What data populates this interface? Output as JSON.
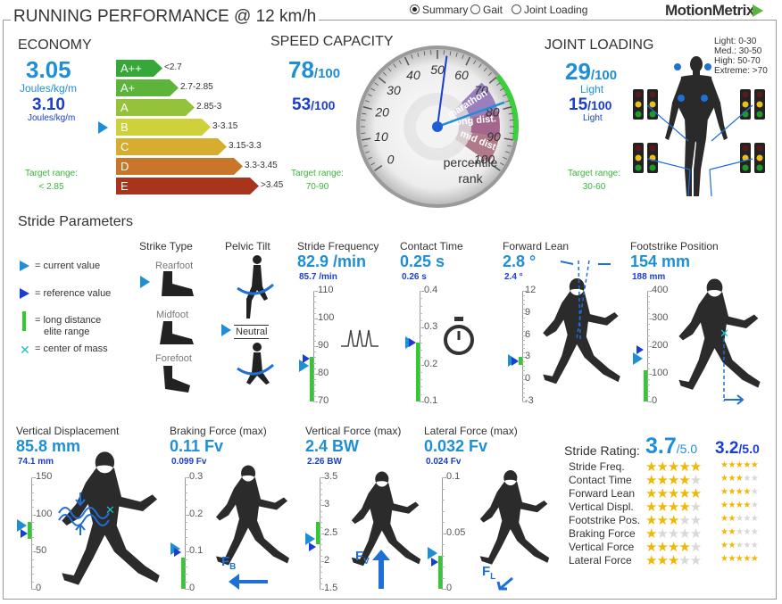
{
  "title": "RUNNING PERFORMANCE @ 12 km/h",
  "view_options": [
    {
      "label": "Summary",
      "selected": true
    },
    {
      "label": "Gait",
      "selected": false
    },
    {
      "label": "Joint Loading",
      "selected": false
    }
  ],
  "logo": "MotionMetrix",
  "economy": {
    "header": "ECONOMY",
    "current": "3.05",
    "current_unit": "Joules/kg/m",
    "reference": "3.10",
    "reference_unit": "Joules/kg/m",
    "target_label": "Target range:",
    "target_value": "< 2.85",
    "grades": [
      {
        "grade": "A++",
        "range": "<2.7",
        "color": "#36a83a"
      },
      {
        "grade": "A+",
        "range": "2.7-2.85",
        "color": "#5db43a"
      },
      {
        "grade": "A",
        "range": "2.85-3",
        "color": "#94c23a"
      },
      {
        "grade": "B",
        "range": "3-3.15",
        "color": "#cfd13a"
      },
      {
        "grade": "C",
        "range": "3.15-3.3",
        "color": "#d6ad2f"
      },
      {
        "grade": "D",
        "range": "3.3-3.45",
        "color": "#c9762a"
      },
      {
        "grade": "E",
        "range": ">3.45",
        "color": "#a8341c"
      }
    ],
    "current_grade_index": 3
  },
  "speed": {
    "header": "SPEED CAPACITY",
    "current": "78",
    "current_suffix": "/100",
    "reference": "53",
    "reference_suffix": "/100",
    "target_label": "Target range:",
    "target_value": "70-90",
    "gauge_label_1": "percentile",
    "gauge_label_2": "rank",
    "gauge_ticks": [
      "0",
      "10",
      "20",
      "30",
      "40",
      "50",
      "60",
      "70",
      "80",
      "90",
      "100"
    ],
    "bands": [
      "marathon",
      "long dist.",
      "mid dist"
    ],
    "current_value": 78,
    "reference_value": 53
  },
  "joint": {
    "header": "JOINT LOADING",
    "current": "29",
    "current_suffix": "/100",
    "current_label": "Light",
    "reference": "15",
    "reference_suffix": "/100",
    "reference_label": "Light",
    "target_label": "Target range:",
    "target_value": "30-60",
    "legend": [
      "Light: 0-30",
      "Med.: 30-50",
      "High: 50-70",
      "Extreme: >70"
    ]
  },
  "stride": {
    "header": "Stride Parameters",
    "legend": [
      {
        "icon": "current-value-icon",
        "text": "= current value"
      },
      {
        "icon": "reference-value-icon",
        "text": "= reference value"
      },
      {
        "icon": "elite-range-icon",
        "text": "= long distance"
      },
      {
        "icon": "none",
        "text": "elite range"
      },
      {
        "icon": "center-of-mass-icon",
        "text": "= center of mass"
      }
    ],
    "strike_type": {
      "title": "Strike Type",
      "options": [
        "Rearfoot",
        "Midfoot",
        "Forefoot"
      ]
    },
    "pelvic_tilt": {
      "title": "Pelvic Tilt",
      "value": "Neutral"
    },
    "gauges": [
      {
        "key": "freq",
        "title": "Stride Frequency",
        "value": "82.9 /min",
        "reference": "85.7 /min",
        "ticks": [
          "110",
          "100",
          "90",
          "80",
          "70"
        ],
        "current_frac": 0.32,
        "reference_frac": 0.39,
        "elite_low": 0.0,
        "elite_high": 0.4
      },
      {
        "key": "contact",
        "title": "Contact Time",
        "value": "0.25 s",
        "reference": "0.26 s",
        "ticks": [
          "0.4",
          "0.3",
          "0.2",
          "0.1"
        ],
        "current_frac": 0.53,
        "reference_frac": 0.53,
        "elite_low": 0.0,
        "elite_high": 0.53
      },
      {
        "key": "lean",
        "title": "Forward Lean",
        "value": "2.8 °",
        "reference": "2.4 °",
        "ticks": [
          "12",
          "9",
          "6",
          "3",
          "0",
          "-3"
        ],
        "current_frac": 0.37,
        "reference_frac": 0.36,
        "elite_low": 0.33,
        "elite_high": 0.4
      },
      {
        "key": "footstrike",
        "title": "Footstrike Position",
        "value": "154 mm",
        "reference": "188 mm",
        "ticks": [
          "400",
          "300",
          "200",
          "100",
          "0"
        ],
        "current_frac": 0.39,
        "reference_frac": 0.47,
        "elite_low": 0.0,
        "elite_high": 0.28
      },
      {
        "key": "vdisp",
        "title": "Vertical Displacement",
        "value": "85.8 mm",
        "reference": "74.1 mm",
        "ticks": [
          "150",
          "100",
          "50",
          "0"
        ],
        "current_frac": 0.57,
        "reference_frac": 0.5,
        "elite_low": 0.45,
        "elite_high": 0.6
      },
      {
        "key": "brake",
        "title": "Braking Force (max)",
        "value": "0.11 Fv",
        "reference": "0.099 Fv",
        "ticks": [
          "0.3",
          "0.2",
          "0.1",
          "0"
        ],
        "current_frac": 0.36,
        "reference_frac": 0.33,
        "elite_low": 0.0,
        "elite_high": 0.28
      },
      {
        "key": "vforce",
        "title": "Vertical Force (max)",
        "value": "2.4 BW",
        "reference": "2.26 BW",
        "ticks": [
          "3.5",
          "3",
          "2.5",
          "2",
          "1.5"
        ],
        "current_frac": 0.45,
        "reference_frac": 0.38,
        "elite_low": 0.4,
        "elite_high": 0.6
      },
      {
        "key": "lforce",
        "title": "Lateral Force (max)",
        "value": "0.032 Fv",
        "reference": "0.024 Fv",
        "ticks": [
          "0.1",
          "0.05",
          "0"
        ],
        "current_frac": 0.32,
        "reference_frac": 0.24,
        "elite_low": 0.0,
        "elite_high": 0.3
      }
    ],
    "force_labels": {
      "brake": "F",
      "brake_sub": "B",
      "vforce": "F",
      "vforce_sub": "V",
      "lforce": "F",
      "lforce_sub": "L"
    }
  },
  "rating": {
    "label": "Stride Rating:",
    "current": "3.7",
    "current_suffix": "/5.0",
    "reference": "3.2",
    "reference_suffix": "/5.0",
    "rows": [
      {
        "name": "Stride Freq.",
        "current": 5,
        "reference": 5
      },
      {
        "name": "Contact Time",
        "current": 4,
        "reference": 3
      },
      {
        "name": "Forward Lean",
        "current": 5,
        "reference": 4
      },
      {
        "name": "Vertical Displ.",
        "current": 4,
        "reference": 4
      },
      {
        "name": "Footstrike Pos.",
        "current": 3,
        "reference": 2
      },
      {
        "name": "Braking Force",
        "current": 1,
        "reference": 2
      },
      {
        "name": "Vertical Force",
        "current": 4,
        "reference": 2
      },
      {
        "name": "Lateral Force",
        "current": 3,
        "reference": 5
      }
    ]
  },
  "colors": {
    "accent": "#1e8fd6",
    "reference": "#1a3ecf",
    "elite": "#2ecc2e",
    "target": "#3cb33c"
  }
}
